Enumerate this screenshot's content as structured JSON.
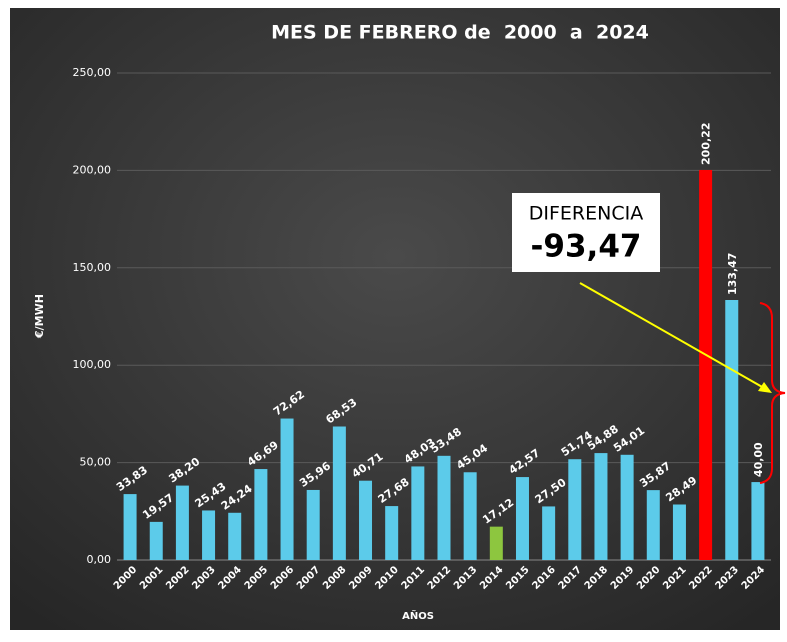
{
  "chart_data": {
    "type": "bar",
    "title": "MES DE FEBRERO de  2000  a  2024",
    "y_label": "€/MWH",
    "x_label": "AÑOS",
    "categories": [
      "2000",
      "2001",
      "2002",
      "2003",
      "2004",
      "2005",
      "2006",
      "2007",
      "2008",
      "2009",
      "2010",
      "2011",
      "2012",
      "2013",
      "2014",
      "2015",
      "2016",
      "2017",
      "2018",
      "2019",
      "2020",
      "2021",
      "2022",
      "2023",
      "2024"
    ],
    "values": [
      33.83,
      19.57,
      38.2,
      25.43,
      24.24,
      46.69,
      72.62,
      35.96,
      68.53,
      40.71,
      27.68,
      48.03,
      53.48,
      45.04,
      17.12,
      42.57,
      27.5,
      51.74,
      54.88,
      54.01,
      35.87,
      28.49,
      200.22,
      133.47,
      40.0
    ],
    "value_labels": [
      "33,83",
      "19,57",
      "38,20",
      "25,43",
      "24,24",
      "46,69",
      "72,62",
      "35,96",
      "68,53",
      "40,71",
      "27,68",
      "48,03",
      "53,48",
      "45,04",
      "17,12",
      "42,57",
      "27,50",
      "51,74",
      "54,88",
      "54,01",
      "35,87",
      "28,49",
      "200,22",
      "133,47",
      "40,00"
    ],
    "colors": [
      "#5ccbea",
      "#5ccbea",
      "#5ccbea",
      "#5ccbea",
      "#5ccbea",
      "#5ccbea",
      "#5ccbea",
      "#5ccbea",
      "#5ccbea",
      "#5ccbea",
      "#5ccbea",
      "#5ccbea",
      "#5ccbea",
      "#5ccbea",
      "#8dc63f",
      "#5ccbea",
      "#5ccbea",
      "#5ccbea",
      "#5ccbea",
      "#5ccbea",
      "#5ccbea",
      "#5ccbea",
      "#ff0000",
      "#5ccbea",
      "#5ccbea"
    ],
    "ylim": [
      0,
      250
    ],
    "yticks": [
      {
        "value": 0,
        "label": "0,00"
      },
      {
        "value": 50,
        "label": "50,00"
      },
      {
        "value": 100,
        "label": "100,00"
      },
      {
        "value": 150,
        "label": "150,00"
      },
      {
        "value": 200,
        "label": "200,00"
      },
      {
        "value": 250,
        "label": "250,00"
      }
    ],
    "grid": true,
    "annotation": {
      "title": "DIFERENCIA",
      "text": "-93,47"
    }
  }
}
